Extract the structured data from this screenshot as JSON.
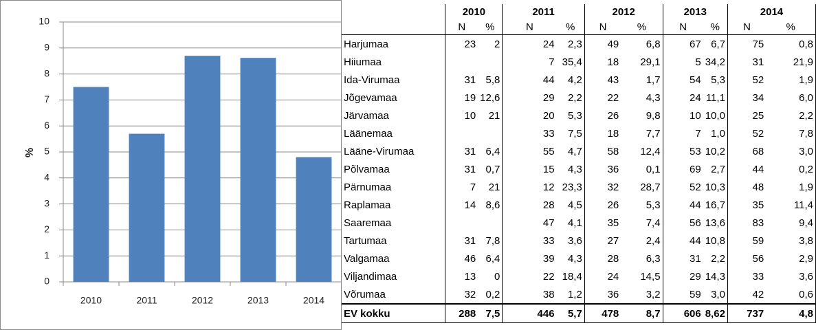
{
  "chart_data": {
    "type": "bar",
    "ylabel": "%",
    "categories": [
      "2010",
      "2011",
      "2012",
      "2013",
      "2014"
    ],
    "values": [
      7.5,
      5.7,
      8.7,
      8.62,
      4.8
    ],
    "color": "#4f81bd",
    "ylim": [
      0,
      10
    ],
    "yticks": [
      0,
      1,
      2,
      3,
      4,
      5,
      6,
      7,
      8,
      9,
      10
    ],
    "grid": true
  },
  "table": {
    "years": [
      "2010",
      "2011",
      "2012",
      "2013",
      "2014"
    ],
    "subheaders": [
      "N",
      "%",
      "N",
      "%",
      "N",
      "%",
      "N",
      "%",
      "N",
      "%"
    ],
    "rows": [
      [
        "Harjumaa",
        "23",
        "2",
        "24",
        "2,3",
        "49",
        "6,8",
        "67",
        "6,7",
        "75",
        "0,8"
      ],
      [
        "Hiiumaa",
        null,
        null,
        "7",
        "35,4",
        "18",
        "29,1",
        "5",
        "34,2",
        "31",
        "21,9"
      ],
      [
        "Ida-Virumaa",
        "31",
        "5,8",
        "44",
        "4,2",
        "43",
        "1,7",
        "54",
        "5,3",
        "52",
        "1,9"
      ],
      [
        "Jõgevamaa",
        "19",
        "12,6",
        "29",
        "2,2",
        "22",
        "4,3",
        "24",
        "11,1",
        "34",
        "6,0"
      ],
      [
        "Järvamaa",
        "10",
        "21",
        "20",
        "5,3",
        "26",
        "9,8",
        "10",
        "10,0",
        "25",
        "2,2"
      ],
      [
        "Läänemaa",
        null,
        null,
        "33",
        "7,5",
        "18",
        "7,7",
        "7",
        "1,0",
        "52",
        "7,8"
      ],
      [
        "Lääne-Virumaa",
        "31",
        "6,4",
        "55",
        "4,7",
        "58",
        "12,4",
        "53",
        "10,2",
        "68",
        "3,0"
      ],
      [
        "Põlvamaa",
        "31",
        "0,7",
        "15",
        "4,3",
        "36",
        "0,1",
        "69",
        "2,7",
        "44",
        "0,2"
      ],
      [
        "Pärnumaa",
        "7",
        "21",
        "12",
        "23,3",
        "32",
        "28,7",
        "52",
        "10,3",
        "48",
        "1,9"
      ],
      [
        "Raplamaa",
        "14",
        "8,6",
        "28",
        "4,5",
        "26",
        "5,3",
        "44",
        "16,7",
        "35",
        "11,4"
      ],
      [
        "Saaremaa",
        null,
        null,
        "47",
        "4,1",
        "35",
        "7,4",
        "56",
        "13,6",
        "83",
        "9,4"
      ],
      [
        "Tartumaa",
        "31",
        "7,8",
        "33",
        "3,6",
        "27",
        "2,4",
        "44",
        "10,8",
        "59",
        "3,8"
      ],
      [
        "Valgamaa",
        "46",
        "6,4",
        "39",
        "4,3",
        "28",
        "6,3",
        "31",
        "2,2",
        "56",
        "2,9"
      ],
      [
        "Viljandimaa",
        "13",
        "0",
        "22",
        "18,4",
        "24",
        "14,5",
        "29",
        "14,3",
        "33",
        "3,6"
      ],
      [
        "Võrumaa",
        "32",
        "0,2",
        "38",
        "1,2",
        "36",
        "3,2",
        "59",
        "3,0",
        "42",
        "0,6"
      ]
    ],
    "total": [
      "EV kokku",
      "288",
      "7,5",
      "446",
      "5,7",
      "478",
      "8,7",
      "606",
      "8,62",
      "737",
      "4,8"
    ]
  }
}
